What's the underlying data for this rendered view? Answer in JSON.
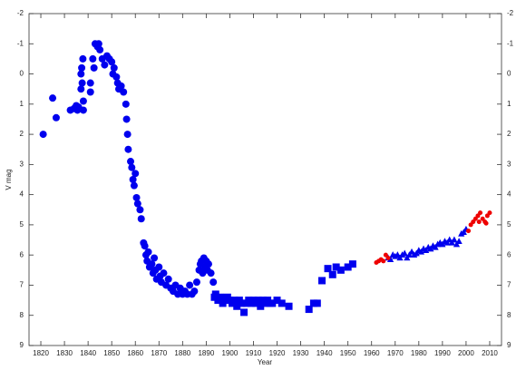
{
  "chart_data": {
    "type": "scatter",
    "x_label": "Year",
    "y_label": "V mag",
    "xlim": [
      1815,
      2015
    ],
    "xticks": [
      1820,
      1830,
      1840,
      1850,
      1860,
      1870,
      1880,
      1890,
      1900,
      1910,
      1920,
      1930,
      1940,
      1950,
      1960,
      1970,
      1980,
      1990,
      2000,
      2010
    ],
    "ylim": [
      -2,
      9
    ],
    "y_inverted": true,
    "yticks": [
      -2,
      -1,
      0,
      1,
      2,
      3,
      4,
      5,
      6,
      7,
      8,
      9
    ],
    "right_axis_labels": true,
    "series": [
      {
        "color": "#0000ee",
        "marker": "circle",
        "size": 4,
        "x": [
          1821,
          1825,
          1826.5,
          1832.5,
          1834,
          1835,
          1835.5,
          1836,
          1837,
          1837,
          1837.3,
          1837.5,
          1837.8,
          1838,
          1838,
          1841,
          1841,
          1842,
          1842.5,
          1843,
          1844,
          1844.5,
          1845,
          1846,
          1847,
          1848,
          1849,
          1850,
          1850.5,
          1851,
          1852,
          1852.5,
          1853,
          1854,
          1855,
          1856,
          1856.3,
          1856.7,
          1857,
          1858,
          1858.5,
          1859,
          1859.5,
          1860,
          1860.5,
          1861,
          1862,
          1862.5,
          1863.5,
          1864,
          1864.5,
          1865,
          1865.5,
          1866,
          1867,
          1867.5,
          1868,
          1868.5,
          1869,
          1870,
          1870.5,
          1871,
          1872,
          1873,
          1874,
          1875,
          1876,
          1877,
          1878,
          1879,
          1880,
          1881,
          1882,
          1883,
          1884,
          1885,
          1886,
          1887,
          1887.5,
          1888,
          1888.5,
          1889,
          1889.5,
          1890,
          1890.5,
          1891,
          1892,
          1893
        ],
        "values": [
          2.0,
          0.8,
          1.45,
          1.2,
          1.15,
          1.05,
          1.2,
          1.1,
          0.5,
          0,
          -0.2,
          0.3,
          -0.5,
          0.9,
          1.2,
          0.3,
          0.6,
          -0.5,
          -0.2,
          -1.0,
          -0.9,
          -1.0,
          -0.8,
          -0.5,
          -0.3,
          -0.6,
          -0.5,
          -0.4,
          0,
          -0.2,
          0.1,
          0.3,
          0.5,
          0.4,
          0.6,
          1.0,
          1.5,
          2.0,
          2.5,
          2.9,
          3.1,
          3.5,
          3.7,
          3.3,
          4.1,
          4.3,
          4.5,
          4.8,
          5.6,
          5.7,
          6.0,
          6.2,
          5.9,
          6.4,
          6.3,
          6.6,
          6.1,
          6.5,
          6.8,
          6.4,
          6.7,
          6.9,
          6.6,
          7.0,
          6.8,
          7.1,
          7.2,
          7.0,
          7.3,
          7.1,
          7.3,
          7.2,
          7.3,
          7.0,
          7.3,
          7.2,
          6.9,
          6.5,
          6.3,
          6.2,
          6.6,
          6.1,
          6.4,
          6.2,
          6.5,
          6.3,
          6.6,
          6.9
        ]
      },
      {
        "color": "#0000ee",
        "marker": "square",
        "size": 5,
        "x": [
          1893.5,
          1894,
          1895,
          1896,
          1897,
          1898,
          1899,
          1900,
          1901,
          1902,
          1903,
          1904,
          1905,
          1906,
          1907,
          1908,
          1909,
          1910,
          1911,
          1912,
          1913,
          1914,
          1915,
          1916,
          1917,
          1918,
          1920,
          1922,
          1925,
          1933.5,
          1935.5,
          1937,
          1939,
          1941.5,
          1943.5,
          1945,
          1947,
          1950,
          1952
        ],
        "values": [
          7.4,
          7.3,
          7.5,
          7.4,
          7.6,
          7.5,
          7.4,
          7.5,
          7.6,
          7.5,
          7.7,
          7.5,
          7.6,
          7.9,
          7.6,
          7.5,
          7.6,
          7.5,
          7.6,
          7.5,
          7.7,
          7.5,
          7.6,
          7.5,
          7.6,
          7.6,
          7.5,
          7.6,
          7.7,
          7.8,
          7.6,
          7.6,
          6.85,
          6.45,
          6.65,
          6.4,
          6.5,
          6.4,
          6.3
        ]
      },
      {
        "color": "#0000ee",
        "marker": "triangle",
        "size": 4,
        "x": [
          1967,
          1968,
          1969,
          1970,
          1971,
          1972,
          1973,
          1974,
          1975,
          1976,
          1977,
          1978,
          1979,
          1980,
          1981,
          1982,
          1983,
          1984,
          1985,
          1986,
          1987,
          1988,
          1989,
          1990,
          1991,
          1992,
          1993,
          1994,
          1995,
          1996,
          1997,
          1998,
          1999,
          2000
        ],
        "values": [
          6.1,
          6.15,
          6.0,
          6.05,
          6.0,
          6.1,
          6.0,
          5.95,
          6.1,
          6.0,
          5.9,
          6.0,
          5.95,
          5.85,
          5.9,
          5.8,
          5.85,
          5.75,
          5.8,
          5.7,
          5.75,
          5.65,
          5.6,
          5.65,
          5.55,
          5.6,
          5.5,
          5.6,
          5.5,
          5.65,
          5.55,
          5.3,
          5.25,
          5.15
        ]
      },
      {
        "color": "#ee0000",
        "marker": "circle",
        "size": 2.5,
        "x": [
          1962,
          1963,
          1964,
          1965,
          1966,
          1967,
          2001,
          2002,
          2003,
          2004,
          2005,
          2005.5,
          2006,
          2007,
          2008,
          2008.5,
          2009,
          2010
        ],
        "values": [
          6.25,
          6.2,
          6.15,
          6.2,
          6.0,
          6.1,
          5.2,
          5.0,
          4.9,
          4.8,
          4.7,
          4.9,
          4.6,
          4.8,
          4.9,
          4.95,
          4.7,
          4.6
        ]
      }
    ]
  }
}
